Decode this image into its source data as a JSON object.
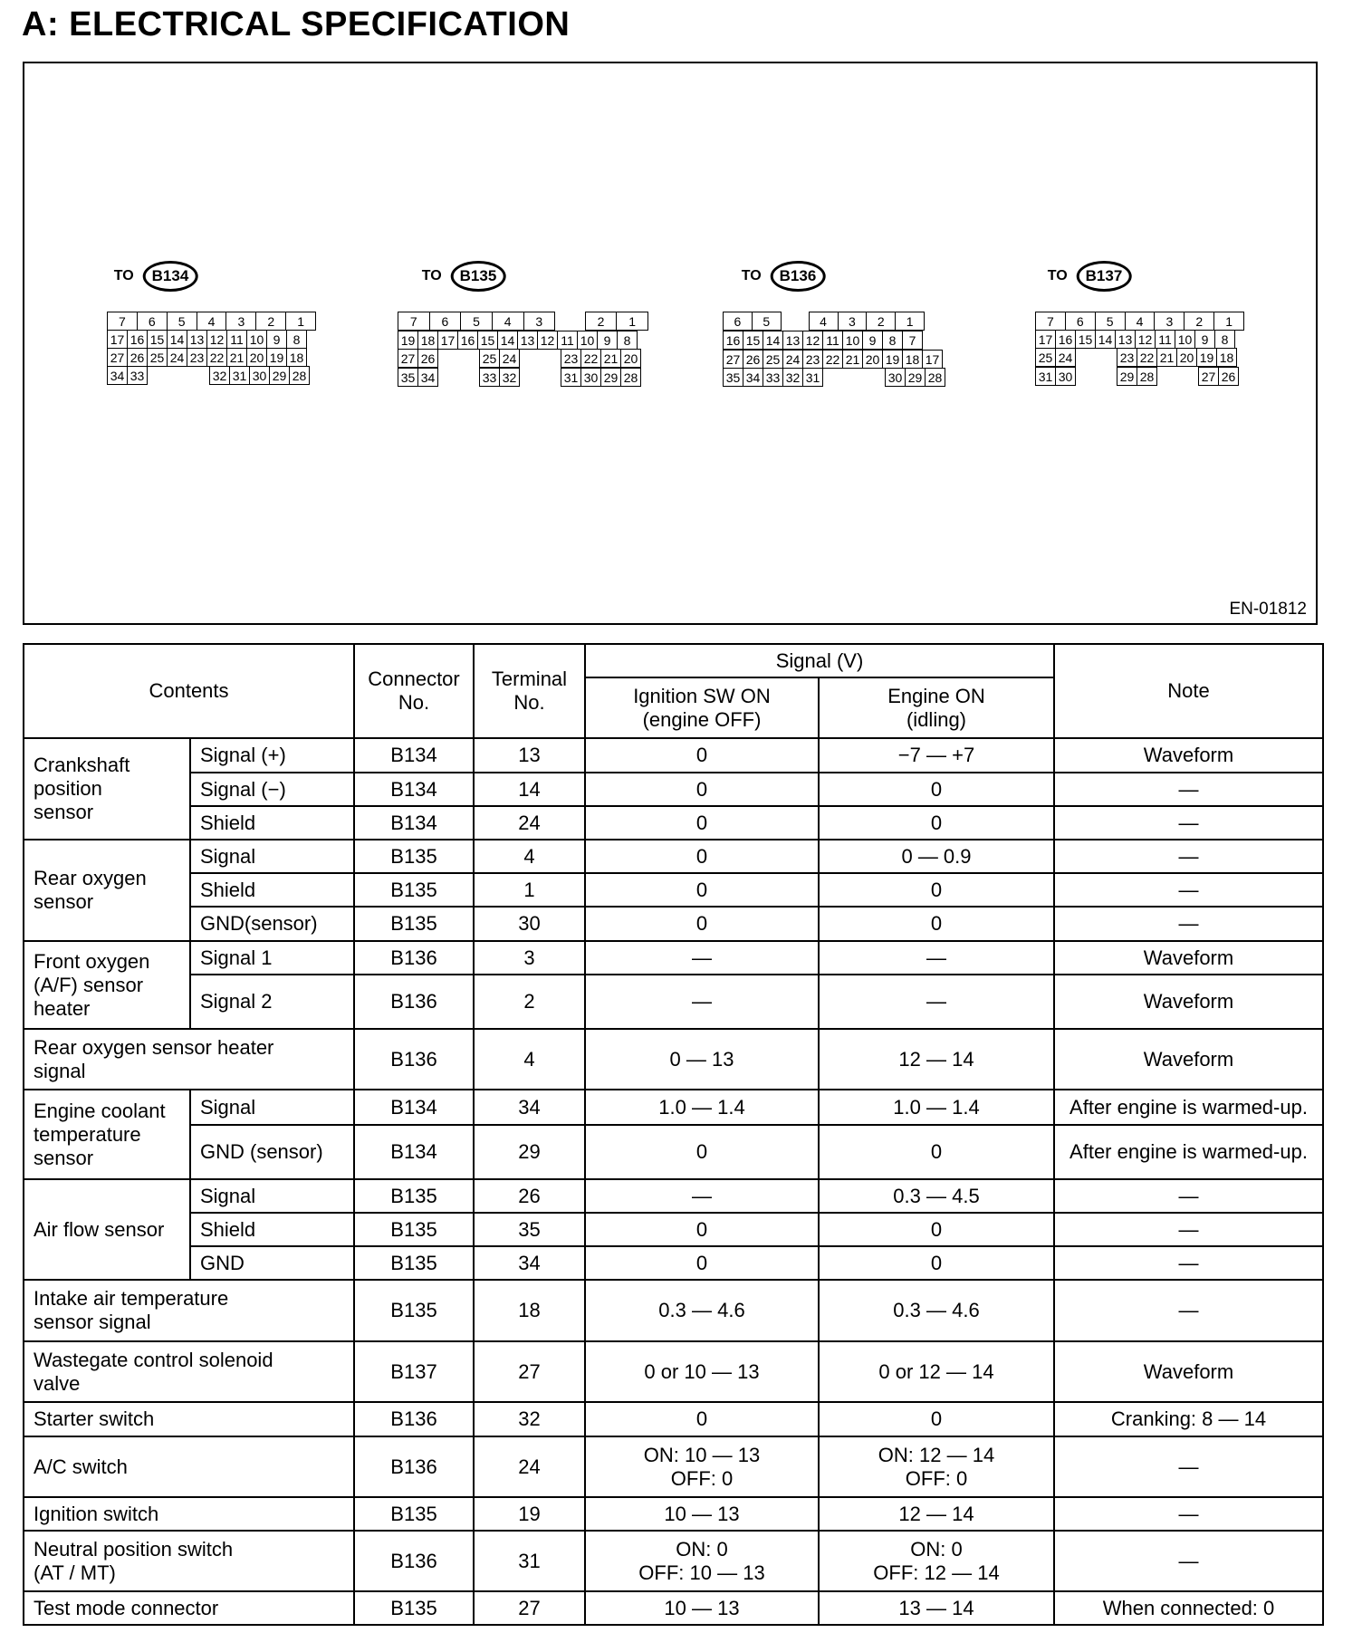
{
  "title": "A:  ELECTRICAL SPECIFICATION",
  "figure": {
    "code": "EN-01812",
    "to_label": "TO",
    "connectors": [
      {
        "id": "B134",
        "top": [
          "7",
          "6",
          "5",
          "4",
          "3",
          "2",
          "1"
        ],
        "rows": [
          [
            "17",
            "16",
            "15",
            "14",
            "13",
            "12",
            "11",
            "10",
            "9",
            "8"
          ],
          [
            "27",
            "26",
            "25",
            "24",
            "23",
            "22",
            "21",
            "20",
            "19",
            "18"
          ],
          [
            "34",
            "33",
            "",
            "",
            "",
            "32",
            "31",
            "30",
            "29",
            "28"
          ]
        ]
      },
      {
        "id": "B135",
        "top": [
          "7",
          "6",
          "5",
          "4",
          "3",
          "",
          "2",
          "1"
        ],
        "rows": [
          [
            "19",
            "18",
            "17",
            "16",
            "15",
            "14",
            "13",
            "12",
            "11",
            "10",
            "9",
            "8"
          ],
          [
            "27",
            "26",
            "",
            "",
            "25",
            "24",
            "",
            "",
            "23",
            "22",
            "21",
            "20"
          ],
          [
            "35",
            "34",
            "",
            "",
            "33",
            "32",
            "",
            "",
            "31",
            "30",
            "29",
            "28"
          ]
        ]
      },
      {
        "id": "B136",
        "top": [
          "6",
          "5",
          "",
          "4",
          "3",
          "2",
          "1",
          ""
        ],
        "rows": [
          [
            "16",
            "15",
            "14",
            "13",
            "12",
            "11",
            "10",
            "9",
            "8",
            "7",
            ""
          ],
          [
            "27",
            "26",
            "25",
            "24",
            "23",
            "22",
            "21",
            "20",
            "19",
            "18",
            "17"
          ],
          [
            "35",
            "34",
            "33",
            "32",
            "31",
            "",
            "",
            "",
            "30",
            "29",
            "28"
          ]
        ]
      },
      {
        "id": "B137",
        "top": [
          "7",
          "6",
          "5",
          "4",
          "3",
          "2",
          "1"
        ],
        "rows": [
          [
            "17",
            "16",
            "15",
            "14",
            "13",
            "12",
            "11",
            "10",
            "9",
            "8"
          ],
          [
            "25",
            "24",
            "",
            "",
            "23",
            "22",
            "21",
            "20",
            "19",
            "18"
          ],
          [
            "31",
            "30",
            "",
            "",
            "29",
            "28",
            "",
            "",
            "27",
            "26"
          ]
        ]
      }
    ]
  },
  "table": {
    "headers": {
      "contents": "Contents",
      "connector": "Connector\nNo.",
      "terminal": "Terminal\nNo.",
      "signal": "Signal (V)",
      "ignition": "Ignition SW ON\n(engine OFF)",
      "engine": "Engine ON\n(idling)",
      "note": "Note"
    },
    "groups": [
      {
        "contents": "Crankshaft\nposition\nsensor",
        "items": [
          {
            "sub": "Signal (+)",
            "conn": "B134",
            "term": "13",
            "ign": "0",
            "eng": "−7 — +7",
            "note": "Waveform"
          },
          {
            "sub": "Signal (−)",
            "conn": "B134",
            "term": "14",
            "ign": "0",
            "eng": "0",
            "note": "—"
          },
          {
            "sub": "Shield",
            "conn": "B134",
            "term": "24",
            "ign": "0",
            "eng": "0",
            "note": "—"
          }
        ]
      },
      {
        "contents": "Rear oxygen\nsensor",
        "items": [
          {
            "sub": "Signal",
            "conn": "B135",
            "term": "4",
            "ign": "0",
            "eng": "0 — 0.9",
            "note": "—"
          },
          {
            "sub": "Shield",
            "conn": "B135",
            "term": "1",
            "ign": "0",
            "eng": "0",
            "note": "—"
          },
          {
            "sub": "GND(sensor)",
            "conn": "B135",
            "term": "30",
            "ign": "0",
            "eng": "0",
            "note": "—"
          }
        ]
      },
      {
        "contents": "Front oxygen\n(A/F) sensor\nheater",
        "items": [
          {
            "sub": "Signal 1",
            "conn": "B136",
            "term": "3",
            "ign": "—",
            "eng": "—",
            "note": "Waveform"
          },
          {
            "sub": "Signal 2",
            "conn": "B136",
            "term": "2",
            "ign": "—",
            "eng": "—",
            "note": "Waveform"
          }
        ]
      },
      {
        "contents": "Rear oxygen sensor heater\nsignal",
        "items": [
          {
            "conn": "B136",
            "term": "4",
            "ign": "0 — 13",
            "eng": "12 — 14",
            "note": "Waveform"
          }
        ]
      },
      {
        "contents": "Engine coolant\ntemperature\nsensor",
        "items": [
          {
            "sub": "Signal",
            "conn": "B134",
            "term": "34",
            "ign": "1.0 — 1.4",
            "eng": "1.0 — 1.4",
            "note": "After engine is warmed-up."
          },
          {
            "sub": "GND (sensor)",
            "conn": "B134",
            "term": "29",
            "ign": "0",
            "eng": "0",
            "note": "After engine is warmed-up."
          }
        ]
      },
      {
        "contents": "Air flow sensor",
        "items": [
          {
            "sub": "Signal",
            "conn": "B135",
            "term": "26",
            "ign": "—",
            "eng": "0.3 — 4.5",
            "note": "—"
          },
          {
            "sub": "Shield",
            "conn": "B135",
            "term": "35",
            "ign": "0",
            "eng": "0",
            "note": "—"
          },
          {
            "sub": "GND",
            "conn": "B135",
            "term": "34",
            "ign": "0",
            "eng": "0",
            "note": "—"
          }
        ]
      },
      {
        "contents": "Intake air temperature\nsensor signal",
        "items": [
          {
            "conn": "B135",
            "term": "18",
            "ign": "0.3 — 4.6",
            "eng": "0.3 — 4.6",
            "note": "—"
          }
        ]
      },
      {
        "contents": "Wastegate control solenoid\nvalve",
        "items": [
          {
            "conn": "B137",
            "term": "27",
            "ign": "0 or 10 — 13",
            "eng": "0 or 12 — 14",
            "note": "Waveform"
          }
        ]
      },
      {
        "contents": "Starter switch",
        "items": [
          {
            "conn": "B136",
            "term": "32",
            "ign": "0",
            "eng": "0",
            "note": "Cranking: 8 — 14"
          }
        ]
      },
      {
        "contents": "A/C switch",
        "items": [
          {
            "conn": "B136",
            "term": "24",
            "ign": "ON: 10 — 13\nOFF: 0",
            "eng": "ON: 12 — 14\nOFF: 0",
            "note": "—"
          }
        ]
      },
      {
        "contents": "Ignition switch",
        "items": [
          {
            "conn": "B135",
            "term": "19",
            "ign": "10 — 13",
            "eng": "12 — 14",
            "note": "—"
          }
        ]
      },
      {
        "contents": "Neutral position switch\n(AT / MT)",
        "items": [
          {
            "conn": "B136",
            "term": "31",
            "ign": "ON: 0\nOFF: 10 — 13",
            "eng": "ON: 0\nOFF: 12 — 14",
            "note": "—"
          }
        ]
      },
      {
        "contents": "Test mode connector",
        "items": [
          {
            "conn": "B135",
            "term": "27",
            "ign": "10 — 13",
            "eng": "13 — 14",
            "note": "When connected: 0"
          }
        ]
      }
    ]
  }
}
